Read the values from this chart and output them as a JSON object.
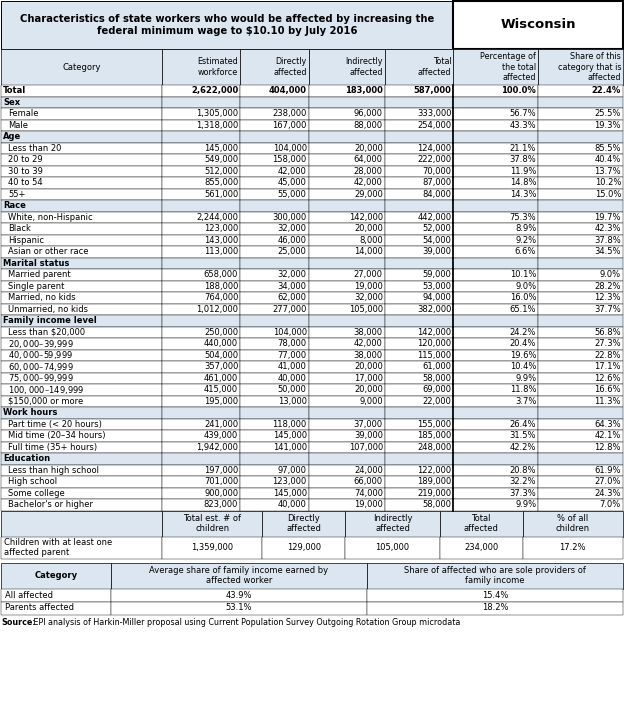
{
  "title_left": "Characteristics of state workers who would be affected by increasing the\nfederal minimum wage to $10.10 by July 2016",
  "title_right": "Wisconsin",
  "header": [
    "Category",
    "Estimated\nworkforce",
    "Directly\naffected",
    "Indirectly\naffected",
    "Total\naffected",
    "Percentage of\nthe total\naffected",
    "Share of this\ncategory that is\naffected"
  ],
  "rows": [
    [
      "Total",
      "2,622,000",
      "404,000",
      "183,000",
      "587,000",
      "100.0%",
      "22.4%"
    ],
    [
      "Sex",
      "",
      "",
      "",
      "",
      "",
      ""
    ],
    [
      "Female",
      "1,305,000",
      "238,000",
      "96,000",
      "333,000",
      "56.7%",
      "25.5%"
    ],
    [
      "Male",
      "1,318,000",
      "167,000",
      "88,000",
      "254,000",
      "43.3%",
      "19.3%"
    ],
    [
      "Age",
      "",
      "",
      "",
      "",
      "",
      ""
    ],
    [
      "Less than 20",
      "145,000",
      "104,000",
      "20,000",
      "124,000",
      "21.1%",
      "85.5%"
    ],
    [
      "20 to 29",
      "549,000",
      "158,000",
      "64,000",
      "222,000",
      "37.8%",
      "40.4%"
    ],
    [
      "30 to 39",
      "512,000",
      "42,000",
      "28,000",
      "70,000",
      "11.9%",
      "13.7%"
    ],
    [
      "40 to 54",
      "855,000",
      "45,000",
      "42,000",
      "87,000",
      "14.8%",
      "10.2%"
    ],
    [
      "55+",
      "561,000",
      "55,000",
      "29,000",
      "84,000",
      "14.3%",
      "15.0%"
    ],
    [
      "Race",
      "",
      "",
      "",
      "",
      "",
      ""
    ],
    [
      "White, non-Hispanic",
      "2,244,000",
      "300,000",
      "142,000",
      "442,000",
      "75.3%",
      "19.7%"
    ],
    [
      "Black",
      "123,000",
      "32,000",
      "20,000",
      "52,000",
      "8.9%",
      "42.3%"
    ],
    [
      "Hispanic",
      "143,000",
      "46,000",
      "8,000",
      "54,000",
      "9.2%",
      "37.8%"
    ],
    [
      "Asian or other race",
      "113,000",
      "25,000",
      "14,000",
      "39,000",
      "6.6%",
      "34.5%"
    ],
    [
      "Marital status",
      "",
      "",
      "",
      "",
      "",
      ""
    ],
    [
      "Married parent",
      "658,000",
      "32,000",
      "27,000",
      "59,000",
      "10.1%",
      "9.0%"
    ],
    [
      "Single parent",
      "188,000",
      "34,000",
      "19,000",
      "53,000",
      "9.0%",
      "28.2%"
    ],
    [
      "Married, no kids",
      "764,000",
      "62,000",
      "32,000",
      "94,000",
      "16.0%",
      "12.3%"
    ],
    [
      "Unmarried, no kids",
      "1,012,000",
      "277,000",
      "105,000",
      "382,000",
      "65.1%",
      "37.7%"
    ],
    [
      "Family income level",
      "",
      "",
      "",
      "",
      "",
      ""
    ],
    [
      "Less than $20,000",
      "250,000",
      "104,000",
      "38,000",
      "142,000",
      "24.2%",
      "56.8%"
    ],
    [
      "$20,000–$39,999",
      "440,000",
      "78,000",
      "42,000",
      "120,000",
      "20.4%",
      "27.3%"
    ],
    [
      "$40,000–$59,999",
      "504,000",
      "77,000",
      "38,000",
      "115,000",
      "19.6%",
      "22.8%"
    ],
    [
      "$60,000–$74,999",
      "357,000",
      "41,000",
      "20,000",
      "61,000",
      "10.4%",
      "17.1%"
    ],
    [
      "$75,000–$99,999",
      "461,000",
      "40,000",
      "17,000",
      "58,000",
      "9.9%",
      "12.6%"
    ],
    [
      "$100,000–$149,999",
      "415,000",
      "50,000",
      "20,000",
      "69,000",
      "11.8%",
      "16.6%"
    ],
    [
      "$150,000 or more",
      "195,000",
      "13,000",
      "9,000",
      "22,000",
      "3.7%",
      "11.3%"
    ],
    [
      "Work hours",
      "",
      "",
      "",
      "",
      "",
      ""
    ],
    [
      "Part time (< 20 hours)",
      "241,000",
      "118,000",
      "37,000",
      "155,000",
      "26.4%",
      "64.3%"
    ],
    [
      "Mid time (20–34 hours)",
      "439,000",
      "145,000",
      "39,000",
      "185,000",
      "31.5%",
      "42.1%"
    ],
    [
      "Full time (35+ hours)",
      "1,942,000",
      "141,000",
      "107,000",
      "248,000",
      "42.2%",
      "12.8%"
    ],
    [
      "Education",
      "",
      "",
      "",
      "",
      "",
      ""
    ],
    [
      "Less than high school",
      "197,000",
      "97,000",
      "24,000",
      "122,000",
      "20.8%",
      "61.9%"
    ],
    [
      "High school",
      "701,000",
      "123,000",
      "66,000",
      "189,000",
      "32.2%",
      "27.0%"
    ],
    [
      "Some college",
      "900,000",
      "145,000",
      "74,000",
      "219,000",
      "37.3%",
      "24.3%"
    ],
    [
      "Bachelor's or higher",
      "823,000",
      "40,000",
      "19,000",
      "58,000",
      "9.9%",
      "7.0%"
    ]
  ],
  "section_headers": [
    "Sex",
    "Age",
    "Race",
    "Marital status",
    "Family income level",
    "Work hours",
    "Education"
  ],
  "children_header": [
    "",
    "Total est. # of\nchildren",
    "Directly\naffected",
    "Indirectly\naffected",
    "Total\naffected",
    "% of all\nchildren"
  ],
  "children_rows": [
    [
      "Children with at least one\naffected parent",
      "1,359,000",
      "129,000",
      "105,000",
      "234,000",
      "17.2%"
    ]
  ],
  "bottom_header_col1": "Category",
  "bottom_header_col2": "Average share of family income earned by\naffected worker",
  "bottom_header_col3": "Share of affected who are sole providers of\nfamily income",
  "bottom_rows": [
    [
      "All affected",
      "43.9%",
      "15.4%"
    ],
    [
      "Parents affected",
      "53.1%",
      "18.2%"
    ]
  ],
  "source": "Source: EPI analysis of Harkin-Miller proposal using Current Population Survey Outgoing Rotation Group microdata",
  "bg_header": "#ccd9ea",
  "bg_light": "#dce6f1",
  "bg_white": "#ffffff",
  "border_color": "#000000"
}
